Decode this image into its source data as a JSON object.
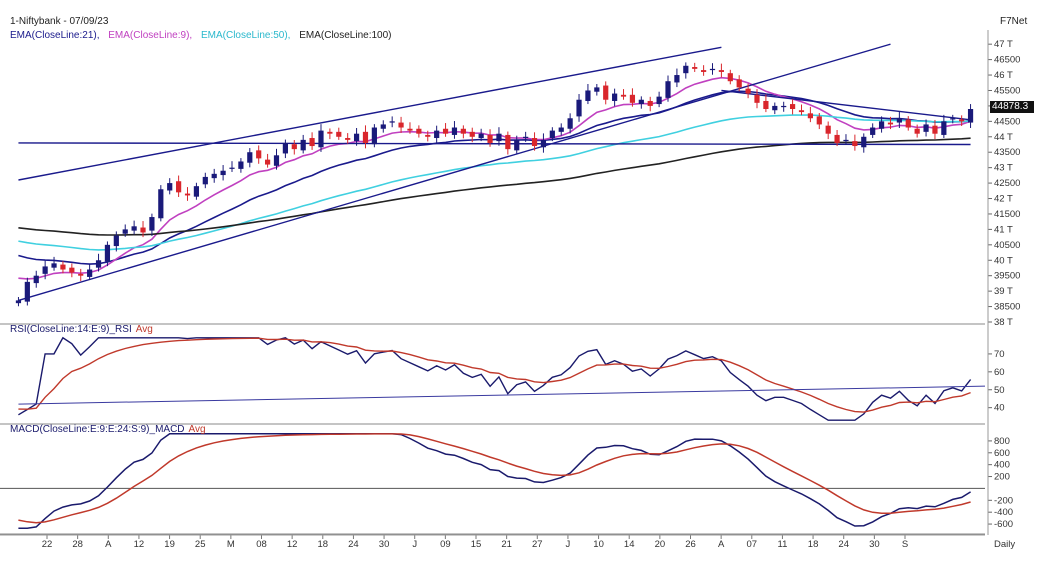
{
  "header": {
    "title": "1-Niftybank - 07/09/23",
    "brand": "F7Net"
  },
  "price_legend": [
    {
      "label": "EMA(CloseLine:21),",
      "color": "#1a1a8c"
    },
    {
      "label": "EMA(CloseLine:9),",
      "color": "#c040c0"
    },
    {
      "label": "EMA(CloseLine:50),",
      "color": "#40d0e0"
    },
    {
      "label": "EMA(CloseLine:100)",
      "color": "#222222"
    }
  ],
  "rsi_legend": {
    "main": "RSI(CloseLine:14:E:9)_RSI",
    "avg": "Avg",
    "main_color": "#1a1a6c",
    "avg_color": "#c0392b"
  },
  "macd_legend": {
    "main": "MACD(CloseLine:E:9:E:24:S:9)_MACD",
    "avg": "Avg",
    "main_color": "#1a1a6c",
    "avg_color": "#c0392b"
  },
  "last_price_label": "44878.3",
  "chart_data": [
    {
      "type": "candlestick",
      "y_ticks": [
        "47 T",
        "46500",
        "46 T",
        "45500",
        "45 T",
        "44500",
        "44 T",
        "43500",
        "43 T",
        "42500",
        "42 T",
        "41500",
        "41 T",
        "40500",
        "40 T",
        "39500",
        "39 T",
        "38500",
        "38 T"
      ],
      "ylim": [
        38000,
        47200
      ],
      "x_ticks": [
        "22",
        "28",
        "A",
        "12",
        "19",
        "25",
        "M",
        "08",
        "12",
        "18",
        "24",
        "30",
        "J",
        "09",
        "15",
        "21",
        "27",
        "J",
        "10",
        "14",
        "20",
        "26",
        "A",
        "07",
        "11",
        "18",
        "24",
        "30",
        "S"
      ],
      "x_axis_label": "Daily",
      "closes": [
        38700,
        39300,
        39500,
        39800,
        39900,
        39700,
        39600,
        39500,
        39700,
        40000,
        40500,
        40800,
        41000,
        41100,
        40900,
        41400,
        42300,
        42500,
        42200,
        42100,
        42400,
        42700,
        42800,
        42900,
        43000,
        43200,
        43500,
        43300,
        43100,
        43400,
        43800,
        43600,
        43900,
        43700,
        44200,
        44100,
        44000,
        43900,
        44100,
        43800,
        44300,
        44400,
        44500,
        44300,
        44200,
        44100,
        44000,
        44200,
        44100,
        44300,
        44100,
        44000,
        44100,
        43800,
        44100,
        43600,
        43900,
        44000,
        43700,
        43900,
        44200,
        44300,
        44600,
        45200,
        45500,
        45600,
        45200,
        45400,
        45300,
        45100,
        45200,
        45000,
        45300,
        45800,
        46000,
        46300,
        46200,
        46100,
        46200,
        46100,
        45800,
        45600,
        45400,
        45100,
        44900,
        45000,
        45000,
        44900,
        44800,
        44600,
        44400,
        44100,
        43800,
        43900,
        43700,
        44000,
        44300,
        44500,
        44400,
        44600,
        44300,
        44100,
        44400,
        44100,
        44500,
        44600,
        44500,
        44900
      ],
      "series": [
        {
          "name": "EMA(CloseLine:21)",
          "color": "#1a1a8c"
        },
        {
          "name": "EMA(CloseLine:9)",
          "color": "#c040c0"
        },
        {
          "name": "EMA(CloseLine:50)",
          "color": "#40d0e0"
        },
        {
          "name": "EMA(CloseLine:100)",
          "color": "#222222"
        }
      ],
      "trendlines": [
        {
          "from": [
            0,
            42600
          ],
          "to": [
            79,
            46900
          ],
          "color": "#1a1a8c"
        },
        {
          "from": [
            0,
            38700
          ],
          "to": [
            98,
            47000
          ],
          "color": "#1a1a8c"
        },
        {
          "from": [
            0,
            43800
          ],
          "to": [
            107,
            43750
          ],
          "color": "#1a1a8c"
        },
        {
          "from": [
            79,
            45500
          ],
          "to": [
            107,
            44550
          ],
          "color": "#1a1a8c"
        }
      ]
    },
    {
      "type": "line",
      "y_ticks": [
        "70",
        "60",
        "50",
        "40"
      ],
      "ylim": [
        32,
        80
      ],
      "series": [
        {
          "name": "RSI(CloseLine:14:E:9)_RSI",
          "color": "#1a1a6c"
        },
        {
          "name": "Avg",
          "color": "#c0392b"
        }
      ],
      "trendline": {
        "from": [
          0,
          42
        ],
        "to": [
          107,
          52
        ],
        "color": "#3a3aa0"
      }
    },
    {
      "type": "line",
      "y_ticks": [
        "800",
        "600",
        "400",
        "200",
        "-200",
        "-400",
        "-600"
      ],
      "ylim": [
        -700,
        950
      ],
      "zero_line": 0,
      "series": [
        {
          "name": "MACD(CloseLine:E:9:E:24:S:9)_MACD",
          "color": "#1a1a6c"
        },
        {
          "name": "Avg",
          "color": "#c0392b"
        }
      ]
    }
  ]
}
